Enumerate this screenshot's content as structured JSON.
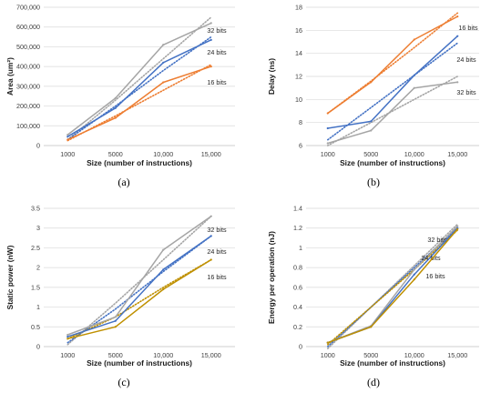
{
  "chart_data": [
    {
      "type": "line",
      "id": "a",
      "caption": "(a)",
      "xlabel": "Size (number of instructions)",
      "ylabel": "Area (um²)",
      "categories": [
        "1000",
        "5000",
        "10,000",
        "15,000"
      ],
      "yticks": [
        "0",
        "100,000",
        "200,000",
        "300,000",
        "400,000",
        "500,000",
        "600,000",
        "700,000"
      ],
      "ylim": [
        0,
        700000
      ],
      "grid": true,
      "series": [
        {
          "name": "32 bits",
          "color": "#a5a5a5",
          "values": [
            55000,
            240000,
            510000,
            620000
          ],
          "trend": [
            30000,
            230000,
            440000,
            650000
          ]
        },
        {
          "name": "24 bits",
          "color": "#4472c4",
          "values": [
            45000,
            190000,
            420000,
            535000
          ],
          "trend": [
            30000,
            200000,
            380000,
            550000
          ]
        },
        {
          "name": "16 bits",
          "color": "#ed7d31",
          "values": [
            30000,
            140000,
            320000,
            400000
          ],
          "trend": [
            25000,
            150000,
            280000,
            410000
          ]
        }
      ]
    },
    {
      "type": "line",
      "id": "b",
      "caption": "(b)",
      "xlabel": "Size (number of instructions)",
      "ylabel": "Delay (ns)",
      "categories": [
        "1000",
        "5000",
        "10,000",
        "15,000"
      ],
      "yticks": [
        "6",
        "8",
        "10",
        "12",
        "14",
        "16",
        "18"
      ],
      "ylim": [
        6,
        18
      ],
      "grid": true,
      "series": [
        {
          "name": "16 bits",
          "color": "#ed7d31",
          "values": [
            8.8,
            11.5,
            15.2,
            17.2
          ],
          "trend": [
            8.8,
            11.6,
            14.5,
            17.5
          ]
        },
        {
          "name": "24 bits",
          "color": "#4472c4",
          "values": [
            7.5,
            8.1,
            12.1,
            15.5
          ],
          "trend": [
            6.5,
            9.3,
            12.1,
            14.9
          ]
        },
        {
          "name": "32 bits",
          "color": "#a5a5a5",
          "values": [
            6.2,
            7.3,
            11.0,
            11.5
          ],
          "trend": [
            6.0,
            8.0,
            10.0,
            12.0
          ]
        }
      ]
    },
    {
      "type": "line",
      "id": "c",
      "caption": "(c)",
      "xlabel": "Size (number of instructions)",
      "ylabel": "Static power (nW)",
      "categories": [
        "1000",
        "5000",
        "10,000",
        "15,000"
      ],
      "yticks": [
        "0",
        "0.5",
        "1",
        "1.5",
        "2",
        "2.5",
        "3",
        "3.5"
      ],
      "ylim": [
        0,
        3.5
      ],
      "grid": true,
      "series": [
        {
          "name": "32 bits",
          "color": "#a5a5a5",
          "values": [
            0.3,
            0.75,
            2.45,
            3.3
          ],
          "trend": [
            0.05,
            1.1,
            2.2,
            3.3
          ]
        },
        {
          "name": "24 bits",
          "color": "#4472c4",
          "values": [
            0.25,
            0.65,
            1.95,
            2.8
          ],
          "trend": [
            0.1,
            0.95,
            1.9,
            2.8
          ]
        },
        {
          "name": "16 bits",
          "color": "#bf9000",
          "values": [
            0.2,
            0.5,
            1.45,
            2.2
          ],
          "trend": [
            0.2,
            0.75,
            1.5,
            2.2
          ]
        }
      ]
    },
    {
      "type": "line",
      "id": "d",
      "caption": "(d)",
      "xlabel": "Size (number of instructions)",
      "ylabel": "Energy per operation (nJ)",
      "categories": [
        "1000",
        "5000",
        "10,000",
        "15,000"
      ],
      "yticks": [
        "0",
        "0.2",
        "0.4",
        "0.6",
        "0.8",
        "1",
        "1.2",
        "1.4"
      ],
      "ylim": [
        0,
        1.4
      ],
      "grid": true,
      "series": [
        {
          "name": "32 bits",
          "color": "#a5a5a5",
          "values": [
            0.04,
            0.21,
            0.78,
            1.22
          ],
          "trend": [
            -0.02,
            0.4,
            0.82,
            1.24
          ]
        },
        {
          "name": "24 bits",
          "color": "#4472c4",
          "values": [
            0.04,
            0.2,
            0.73,
            1.2
          ],
          "trend": [
            0.0,
            0.4,
            0.8,
            1.2
          ]
        },
        {
          "name": "16 bits",
          "color": "#bf9000",
          "values": [
            0.04,
            0.2,
            0.68,
            1.19
          ],
          "trend": [
            0.02,
            0.4,
            0.78,
            1.18
          ]
        }
      ]
    }
  ]
}
